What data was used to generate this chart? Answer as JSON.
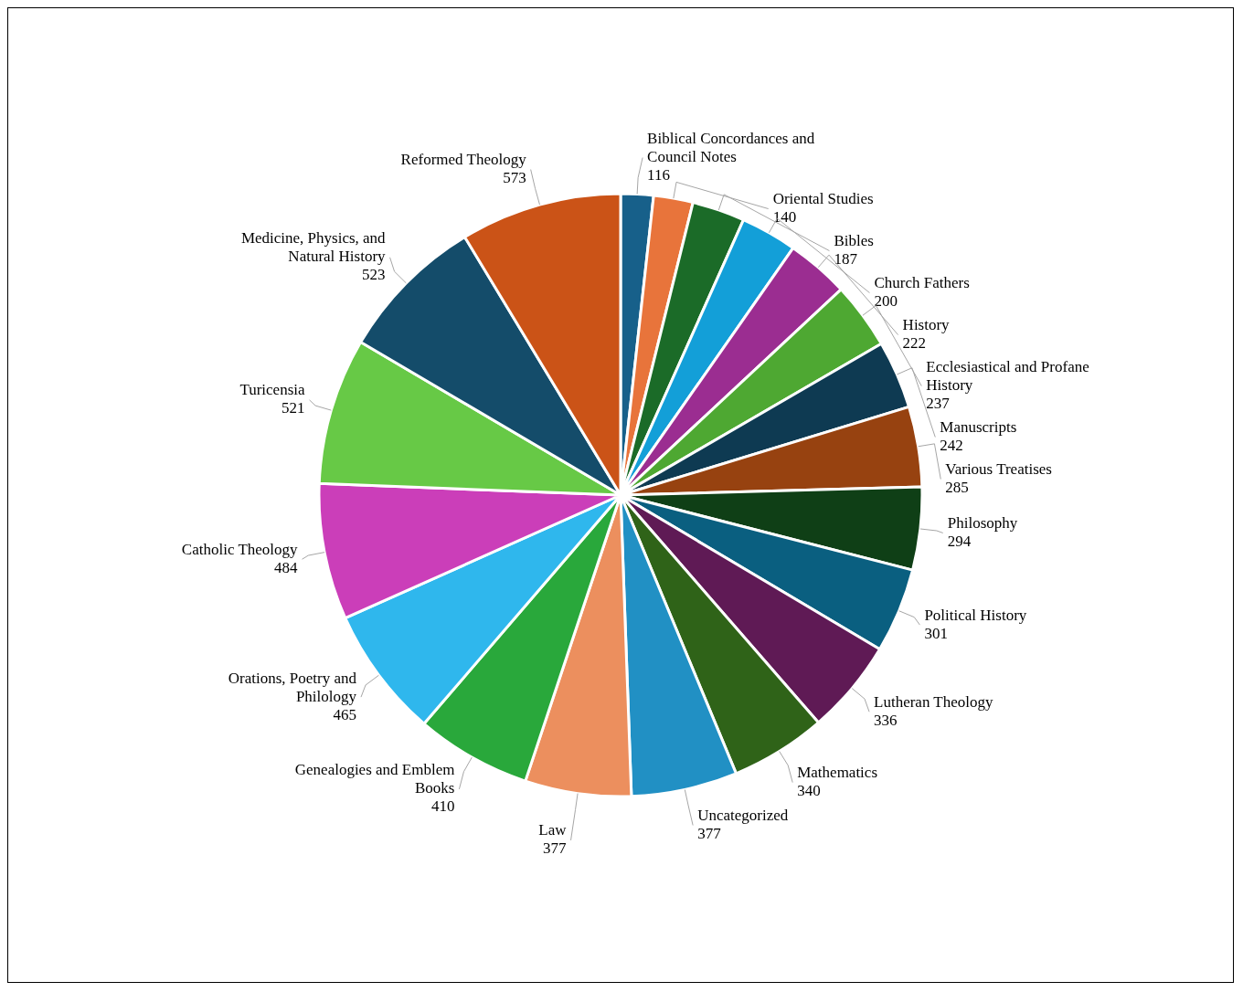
{
  "chart_data": {
    "type": "pie",
    "data_labels": true,
    "legend": false,
    "categories": [
      "Biblical Concordances and Council Notes",
      "Oriental Studies",
      "Bibles",
      "Church Fathers",
      "History",
      "Ecclesiastical and Profane History",
      "Manuscripts",
      "Various Treatises",
      "Philosophy",
      "Political History",
      "Lutheran Theology",
      "Mathematics",
      "Uncategorized",
      "Law",
      "Genealogies and Emblem Books",
      "Orations, Poetry and Philology",
      "Catholic Theology",
      "Turicensia",
      "Medicine, Physics, and Natural History",
      "Reformed Theology"
    ],
    "values": [
      116,
      140,
      187,
      200,
      222,
      237,
      242,
      285,
      294,
      301,
      336,
      340,
      377,
      377,
      410,
      465,
      484,
      521,
      523,
      573
    ],
    "colors": [
      "#17608a",
      "#e8743b",
      "#1b6b28",
      "#139fd8",
      "#9b2d91",
      "#4ea832",
      "#0e3a52",
      "#974210",
      "#0f3f16",
      "#0a5f80",
      "#5f1a55",
      "#2f6318",
      "#2190c4",
      "#ec8f5e",
      "#29a83b",
      "#2fb7ed",
      "#cb3eb9",
      "#67c946",
      "#144c6a",
      "#cb5317"
    ]
  }
}
